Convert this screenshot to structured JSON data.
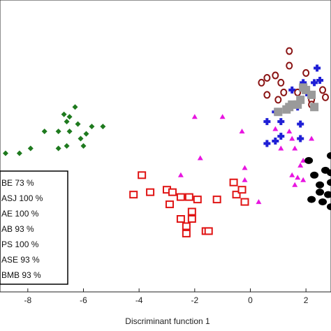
{
  "chart_data": {
    "type": "scatter",
    "title": "",
    "xlabel": "Discriminant function 1",
    "ylabel": "",
    "xlim": [
      -9.0,
      2.9
    ],
    "ylim": [
      -6.0,
      6.0
    ],
    "x_ticks": [
      -8,
      -6,
      -4,
      -2,
      0,
      2
    ],
    "x_tick_labels": [
      "-8",
      "-6",
      "-4",
      "-2",
      "0",
      "2"
    ],
    "grid": false,
    "legend_position": "bottom-left",
    "series": [
      {
        "name": "BE 73 %",
        "marker": "triangle",
        "color": "#e815e0",
        "points": [
          [
            -2.0,
            1.2
          ],
          [
            -1.0,
            1.2
          ],
          [
            -2.5,
            -1.2
          ],
          [
            -1.8,
            -0.5
          ],
          [
            -0.3,
            0.6
          ],
          [
            -0.2,
            -0.9
          ],
          [
            -0.2,
            -1.4
          ],
          [
            0.3,
            -2.3
          ],
          [
            0.9,
            0.7
          ],
          [
            1.1,
            -0.1
          ],
          [
            1.4,
            0.6
          ],
          [
            1.5,
            0.3
          ],
          [
            1.6,
            -0.1
          ],
          [
            1.8,
            -0.8
          ],
          [
            1.9,
            -0.6
          ],
          [
            2.2,
            0.3
          ],
          [
            1.6,
            -1.6
          ],
          [
            1.9,
            -1.4
          ],
          [
            1.5,
            -1.2
          ],
          [
            1.7,
            -1.3
          ]
        ]
      },
      {
        "name": "ASJ 100 %",
        "marker": "plus",
        "color": "#1f1fd6",
        "points": [
          [
            2.4,
            3.2
          ],
          [
            2.5,
            2.7
          ],
          [
            2.3,
            2.6
          ],
          [
            1.9,
            2.6
          ],
          [
            2.1,
            2.1
          ],
          [
            1.5,
            2.3
          ],
          [
            1.7,
            1.6
          ],
          [
            0.9,
            1.4
          ],
          [
            0.6,
            1.0
          ],
          [
            1.1,
            1.0
          ],
          [
            1.8,
            0.9
          ],
          [
            1.1,
            0.4
          ],
          [
            0.9,
            0.2
          ],
          [
            0.6,
            0.1
          ],
          [
            1.8,
            0.3
          ]
        ]
      },
      {
        "name": "AE 100 %",
        "marker": "circle-open",
        "color": "#8a1414",
        "points": [
          [
            1.4,
            3.9
          ],
          [
            1.4,
            3.3
          ],
          [
            0.9,
            2.9
          ],
          [
            2.0,
            3.0
          ],
          [
            0.6,
            2.8
          ],
          [
            0.4,
            2.6
          ],
          [
            1.1,
            2.6
          ],
          [
            1.2,
            2.2
          ],
          [
            0.6,
            2.1
          ],
          [
            1.7,
            2.2
          ],
          [
            2.2,
            1.9
          ],
          [
            2.6,
            2.3
          ],
          [
            1.0,
            1.9
          ],
          [
            2.2,
            1.7
          ],
          [
            2.7,
            2.0
          ]
        ]
      },
      {
        "name": "AB 93 %",
        "marker": "square-open",
        "color": "#e01414",
        "points": [
          [
            -3.9,
            -1.2
          ],
          [
            -4.2,
            -2.0
          ],
          [
            -3.6,
            -1.9
          ],
          [
            -3.0,
            -1.8
          ],
          [
            -2.8,
            -1.9
          ],
          [
            -2.5,
            -2.1
          ],
          [
            -2.9,
            -2.4
          ],
          [
            -2.2,
            -2.1
          ],
          [
            -1.9,
            -2.2
          ],
          [
            -2.1,
            -2.7
          ],
          [
            -1.2,
            -2.2
          ],
          [
            -0.6,
            -1.5
          ],
          [
            -0.5,
            -2.0
          ],
          [
            -0.3,
            -1.8
          ],
          [
            -0.2,
            -2.3
          ],
          [
            -2.3,
            -3.3
          ],
          [
            -2.5,
            -3.0
          ],
          [
            -2.1,
            -3.0
          ],
          [
            -1.6,
            -3.5
          ],
          [
            -1.5,
            -3.5
          ],
          [
            -2.3,
            -3.6
          ]
        ]
      },
      {
        "name": "PS 100 %",
        "marker": "circle",
        "color": "#000000",
        "points": [
          [
            2.1,
            -0.6
          ],
          [
            2.9,
            -0.4
          ],
          [
            2.7,
            -1.0
          ],
          [
            2.9,
            -1.5
          ],
          [
            2.5,
            -1.6
          ],
          [
            2.5,
            -1.9
          ],
          [
            2.8,
            -2.0
          ],
          [
            2.2,
            -2.2
          ],
          [
            2.6,
            -2.3
          ],
          [
            2.9,
            -2.5
          ],
          [
            2.3,
            -1.2
          ],
          [
            2.9,
            -1.1
          ]
        ]
      },
      {
        "name": "ASE 93 %",
        "marker": "square",
        "color": "#9a9a9a",
        "points": [
          [
            2.0,
            2.3
          ],
          [
            2.2,
            2.1
          ],
          [
            1.8,
            1.9
          ],
          [
            1.5,
            1.7
          ],
          [
            1.4,
            1.6
          ],
          [
            1.3,
            1.5
          ],
          [
            1.0,
            1.4
          ],
          [
            1.7,
            1.7
          ],
          [
            2.3,
            1.6
          ],
          [
            1.9,
            2.4
          ]
        ]
      },
      {
        "name": "BMB 93 %",
        "marker": "diamond",
        "color": "#1e7a1e",
        "points": [
          [
            -6.3,
            1.6
          ],
          [
            -6.7,
            1.3
          ],
          [
            -6.5,
            1.2
          ],
          [
            -6.6,
            1.0
          ],
          [
            -6.2,
            0.9
          ],
          [
            -5.7,
            0.8
          ],
          [
            -5.3,
            0.8
          ],
          [
            -6.9,
            0.6
          ],
          [
            -6.5,
            0.6
          ],
          [
            -5.9,
            0.5
          ],
          [
            -7.4,
            0.6
          ],
          [
            -6.1,
            0.3
          ],
          [
            -6.6,
            0.0
          ],
          [
            -6.0,
            0.0
          ],
          [
            -6.9,
            -0.1
          ],
          [
            -7.9,
            -0.1
          ],
          [
            -8.3,
            -0.3
          ],
          [
            -8.8,
            -0.3
          ]
        ]
      }
    ]
  }
}
